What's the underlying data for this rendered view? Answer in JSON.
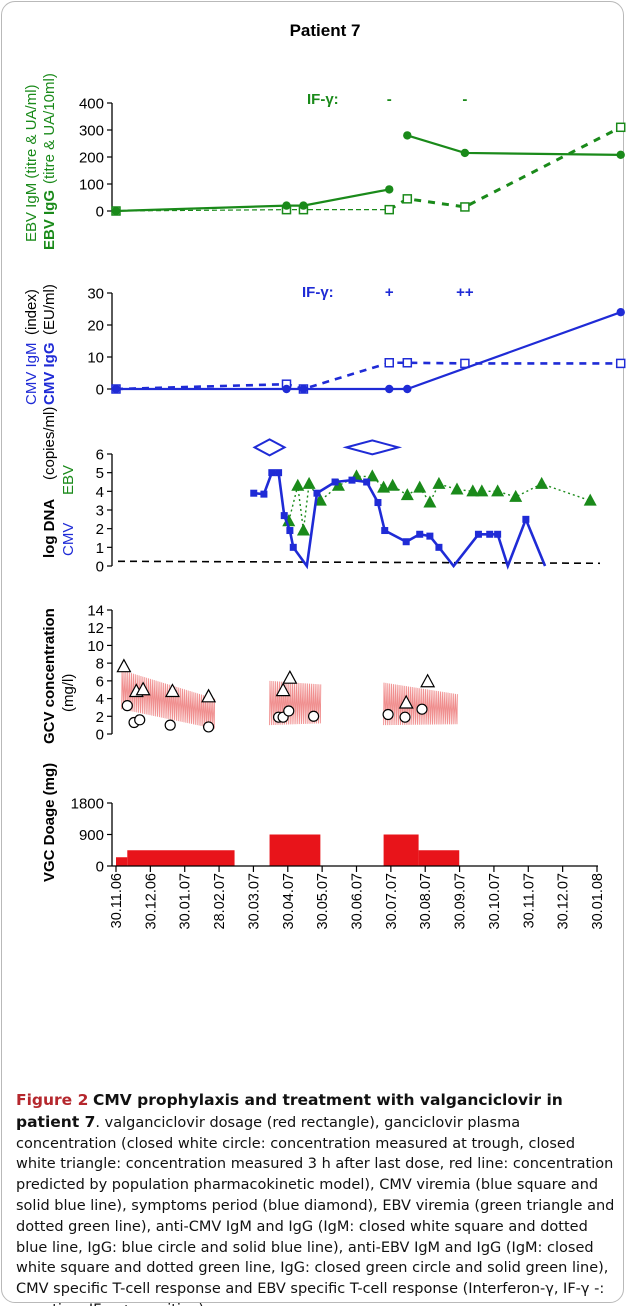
{
  "title": "Patient 7",
  "chart_data": [
    {
      "type": "line",
      "panel": "ebv-serology",
      "ylabel_line1": "EBV IgM",
      "ylabel_line1b": "(titre & UA/ml)",
      "ylabel_line2": "EBV IgG",
      "ylabel_line2b": "(titre & UA/10ml)",
      "ylim": [
        0,
        400
      ],
      "yticks": [
        "0",
        "100",
        "200",
        "300",
        "400"
      ],
      "if_label": "IF-γ:",
      "if_marks": [
        {
          "date": "2007-07-30",
          "text": "-"
        },
        {
          "date": "2007-10-05",
          "text": "-"
        }
      ],
      "series": [
        {
          "name": "EBV IgM",
          "style": "dashed-open-square",
          "color": "#1a8a1a",
          "points": [
            [
              "2006-11-30",
              0
            ],
            [
              "2007-04-30",
              5
            ],
            [
              "2007-05-15",
              5
            ],
            [
              "2007-07-30",
              5
            ],
            [
              "2007-08-15",
              45
            ],
            [
              "2007-10-05",
              15
            ],
            [
              "2008-02-20",
              310
            ]
          ]
        },
        {
          "name": "EBV IgG",
          "style": "solid-filled-circle",
          "color": "#1a8a1a",
          "points": [
            [
              "2006-11-30",
              0
            ],
            [
              "2007-04-30",
              20
            ],
            [
              "2007-05-15",
              20
            ],
            [
              "2007-07-30",
              80
            ],
            [
              "2007-08-15",
              280
            ],
            [
              "2007-10-05",
              215
            ],
            [
              "2008-02-20",
              208
            ]
          ]
        }
      ]
    },
    {
      "type": "line",
      "panel": "cmv-serology",
      "ylabel_line1": "CMV IgM",
      "ylabel_line1b": "(index)",
      "ylabel_line2": "CMV IgG",
      "ylabel_line2b": "(EU/ml)",
      "ylim": [
        0,
        30
      ],
      "yticks": [
        "0",
        "10",
        "20",
        "30"
      ],
      "if_label": "IF-γ:",
      "if_marks": [
        {
          "date": "2007-07-30",
          "text": "+"
        },
        {
          "date": "2007-10-05",
          "text": "++"
        }
      ],
      "series": [
        {
          "name": "CMV IgM",
          "style": "dashed-open-square",
          "color": "#1f2bd6",
          "points": [
            [
              "2006-11-30",
              0
            ],
            [
              "2007-04-30",
              1.5
            ],
            [
              "2007-05-15",
              0
            ],
            [
              "2007-07-30",
              8.2
            ],
            [
              "2007-08-15",
              8.2
            ],
            [
              "2007-10-05",
              8
            ],
            [
              "2008-02-20",
              8
            ]
          ]
        },
        {
          "name": "CMV IgG",
          "style": "solid-filled-circle",
          "color": "#1f2bd6",
          "points": [
            [
              "2006-11-30",
              0
            ],
            [
              "2007-04-30",
              0
            ],
            [
              "2007-05-15",
              0
            ],
            [
              "2007-07-30",
              0
            ],
            [
              "2007-08-15",
              0
            ],
            [
              "2008-02-20",
              24
            ]
          ]
        }
      ]
    },
    {
      "type": "line",
      "panel": "viremia",
      "ylabel_a": "log DNA",
      "ylabel_b": "(copies/ml)",
      "ylabel_cmv": "CMV",
      "ylabel_ebv": "EBV",
      "ylim": [
        0,
        6
      ],
      "yticks": [
        "0",
        "1",
        "2",
        "3",
        "4",
        "5",
        "6"
      ],
      "symptoms": [
        {
          "date": "2007-04-15",
          "level": 6.3,
          "size": "small"
        },
        {
          "date": "2007-07-15",
          "level": 6.3,
          "size": "large"
        }
      ],
      "detection_limit": 0.2,
      "series": [
        {
          "name": "CMV",
          "style": "solid-filled-square",
          "color": "#1f2bd6",
          "points": [
            [
              "2007-04-01",
              3.9
            ],
            [
              "2007-04-10",
              3.85
            ],
            [
              "2007-04-17",
              5.0
            ],
            [
              "2007-04-23",
              5.0
            ],
            [
              "2007-04-28",
              2.7
            ],
            [
              "2007-05-03",
              1.9
            ],
            [
              "2007-05-06",
              1.0
            ],
            [
              "2007-05-18",
              0
            ],
            [
              "2007-05-27",
              3.9
            ],
            [
              "2007-06-12",
              4.5
            ],
            [
              "2007-06-27",
              4.6
            ],
            [
              "2007-07-10",
              4.5
            ],
            [
              "2007-07-20",
              3.4
            ],
            [
              "2007-07-26",
              1.9
            ],
            [
              "2007-08-14",
              1.3
            ],
            [
              "2007-08-26",
              1.7
            ],
            [
              "2007-09-04",
              1.6
            ],
            [
              "2007-09-12",
              1.0
            ],
            [
              "2007-09-25",
              0
            ],
            [
              "2007-10-17",
              1.7
            ],
            [
              "2007-10-27",
              1.7
            ],
            [
              "2007-11-03",
              1.7
            ],
            [
              "2007-11-12",
              0
            ],
            [
              "2007-11-28",
              2.5
            ],
            [
              "2007-12-15",
              0
            ]
          ]
        },
        {
          "name": "EBV",
          "style": "dotted-filled-triangle",
          "color": "#1a8a1a",
          "points": [
            [
              "2007-05-02",
              2.4
            ],
            [
              "2007-05-10",
              4.3
            ],
            [
              "2007-05-15",
              1.9
            ],
            [
              "2007-05-20",
              4.4
            ],
            [
              "2007-05-30",
              3.5
            ],
            [
              "2007-06-15",
              4.3
            ],
            [
              "2007-07-01",
              4.8
            ],
            [
              "2007-07-15",
              4.8
            ],
            [
              "2007-07-25",
              4.2
            ],
            [
              "2007-08-02",
              4.3
            ],
            [
              "2007-08-15",
              3.8
            ],
            [
              "2007-08-26",
              4.2
            ],
            [
              "2007-09-04",
              3.4
            ],
            [
              "2007-09-12",
              4.4
            ],
            [
              "2007-09-28",
              4.1
            ],
            [
              "2007-10-12",
              4.0
            ],
            [
              "2007-10-20",
              4.0
            ],
            [
              "2007-11-03",
              4.0
            ],
            [
              "2007-11-19",
              3.7
            ],
            [
              "2007-12-12",
              4.4
            ],
            [
              "2008-01-24",
              3.5
            ]
          ]
        }
      ]
    },
    {
      "type": "scatter",
      "panel": "ganciclovir",
      "ylabel_a": "GCV concentration",
      "ylabel_b": "(mg/l)",
      "ylim": [
        0,
        14
      ],
      "yticks": [
        "0",
        "2",
        "4",
        "6",
        "8",
        "10",
        "12",
        "14"
      ],
      "predicted_blocks": [
        {
          "start": "2006-12-05",
          "end": "2007-02-25",
          "peak_start": 7.2,
          "peak_end": 4.0,
          "trough_start": 2.8,
          "trough_end": 0.6
        },
        {
          "start": "2007-04-15",
          "end": "2007-05-30",
          "peak_start": 6.0,
          "peak_end": 5.6,
          "trough_start": 1.0,
          "trough_end": 1.2
        },
        {
          "start": "2007-07-25",
          "end": "2007-09-28",
          "peak_start": 5.8,
          "peak_end": 4.5,
          "trough_start": 1.0,
          "trough_end": 1.1
        }
      ],
      "series": [
        {
          "name": "trough",
          "marker": "circle",
          "points": [
            [
              "2006-12-10",
              3.2
            ],
            [
              "2006-12-16",
              1.3
            ],
            [
              "2006-12-21",
              1.6
            ],
            [
              "2007-01-17",
              1.0
            ],
            [
              "2007-02-20",
              0.8
            ],
            [
              "2007-04-23",
              1.9
            ],
            [
              "2007-04-27",
              1.9
            ],
            [
              "2007-05-02",
              2.6
            ],
            [
              "2007-05-24",
              2.0
            ],
            [
              "2007-07-29",
              2.2
            ],
            [
              "2007-08-13",
              1.9
            ],
            [
              "2007-08-28",
              2.8
            ]
          ]
        },
        {
          "name": "3 h post-dose",
          "marker": "triangle",
          "points": [
            [
              "2006-12-07",
              7.6
            ],
            [
              "2006-12-18",
              4.8
            ],
            [
              "2006-12-24",
              5.0
            ],
            [
              "2007-01-19",
              4.8
            ],
            [
              "2007-02-20",
              4.2
            ],
            [
              "2007-04-27",
              4.9
            ],
            [
              "2007-05-03",
              6.3
            ],
            [
              "2007-08-14",
              3.5
            ],
            [
              "2007-09-02",
              5.9
            ]
          ]
        }
      ]
    },
    {
      "type": "bar",
      "panel": "vgc-dosage",
      "ylabel": "VGC Doage  (mg)",
      "ylim": [
        0,
        1800
      ],
      "yticks": [
        "0",
        "900",
        "1800"
      ],
      "bars": [
        {
          "start": "2006-11-30",
          "end": "2006-12-10",
          "value": 250
        },
        {
          "start": "2006-12-10",
          "end": "2007-03-15",
          "value": 450
        },
        {
          "start": "2007-04-15",
          "end": "2007-05-30",
          "value": 900
        },
        {
          "start": "2007-07-25",
          "end": "2007-08-25",
          "value": 900
        },
        {
          "start": "2007-08-25",
          "end": "2007-09-30",
          "value": 450
        }
      ],
      "color": "#e8141a",
      "xtick_labels": [
        "30.11.06",
        "30.12.06",
        "30.01.07",
        "28.02.07",
        "30.03.07",
        "30.04.07",
        "30.05.07",
        "30.06.07",
        "30.07.07",
        "30.08.07",
        "30.09.07",
        "30.10.07",
        "30.11.07",
        "30.12.07",
        "30.01.08"
      ]
    }
  ],
  "caption": {
    "fig_label": "Figure 2",
    "fig_title_1": "CMV prophylaxis and treatment with valganciclovir in",
    "fig_title_2": "patient 7",
    "body": ". valganciclovir dosage (red rectangle), ganciclovir plasma concentration (closed white circle: concentration measured at trough, closed white triangle: concentration measured 3 h after last dose, red line: concentration predicted by population pharmacokinetic model), CMV viremia (blue square and solid blue line), symptoms period (blue diamond), EBV viremia (green triangle and dotted green line), anti-CMV IgM and IgG (IgM: closed white square and dotted blue line, IgG: blue circle and solid blue line), anti-EBV IgM and IgG (IgM: closed white square and dotted green line, IgG: closed green circle and solid green line), CMV specific T-cell response and EBV specific T-cell response (Interferon-γ, IF-γ -: negative; IF-γ +: positive)"
  }
}
